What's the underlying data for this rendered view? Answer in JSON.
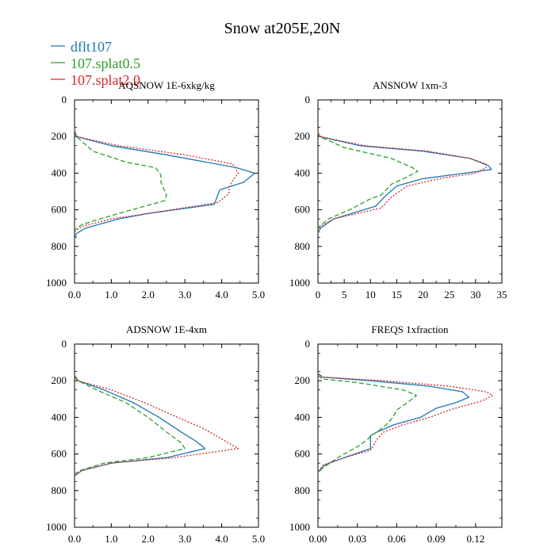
{
  "figure_title": "Snow at205E,20N",
  "legend": [
    {
      "label": "dflt107",
      "color": "#1f77b4",
      "dash": "solid"
    },
    {
      "label": "107.splat0.5",
      "color": "#2ca02c",
      "dash": "dash"
    },
    {
      "label": "107.splat2.0",
      "color": "#d62728",
      "dash": "dot"
    }
  ],
  "chart_data": [
    {
      "type": "line",
      "title": "AQSNOW  1E-6xkg/kg",
      "xlim": [
        0,
        5
      ],
      "ylim": [
        1000,
        0
      ],
      "xticks": [
        0,
        1,
        2,
        3,
        4,
        5
      ],
      "xticklabels": [
        "0.0",
        "1.0",
        "2.0",
        "3.0",
        "4.0",
        "5.0"
      ],
      "yticks": [
        0,
        200,
        400,
        600,
        800,
        1000
      ],
      "yticklabels": [
        "0",
        "200",
        "400",
        "600",
        "800",
        "1000"
      ],
      "series": [
        {
          "name": "dflt107",
          "points": [
            [
              0,
              160
            ],
            [
              0.05,
              200
            ],
            [
              1.0,
              250
            ],
            [
              2.5,
              300
            ],
            [
              4.4,
              370
            ],
            [
              4.9,
              400
            ],
            [
              4.6,
              450
            ],
            [
              3.95,
              490
            ],
            [
              3.8,
              570
            ],
            [
              2.0,
              620
            ],
            [
              1.2,
              650
            ],
            [
              0.3,
              700
            ],
            [
              0.05,
              730
            ],
            [
              0,
              760
            ]
          ]
        },
        {
          "name": "107.splat0.5",
          "points": [
            [
              0,
              170
            ],
            [
              0.05,
              200
            ],
            [
              0.5,
              280
            ],
            [
              1.4,
              340
            ],
            [
              2.2,
              370
            ],
            [
              2.35,
              410
            ],
            [
              2.35,
              450
            ],
            [
              2.5,
              520
            ],
            [
              2.45,
              550
            ],
            [
              1.2,
              620
            ],
            [
              0.2,
              680
            ],
            [
              0,
              710
            ]
          ]
        },
        {
          "name": "107.splat2.0",
          "points": [
            [
              0,
              170
            ],
            [
              0.05,
              200
            ],
            [
              1.2,
              250
            ],
            [
              3.0,
              300
            ],
            [
              4.3,
              350
            ],
            [
              4.45,
              400
            ],
            [
              4.3,
              440
            ],
            [
              4.2,
              480
            ],
            [
              4.2,
              510
            ],
            [
              3.9,
              560
            ],
            [
              2.0,
              620
            ],
            [
              1.0,
              650
            ],
            [
              0.2,
              690
            ],
            [
              0,
              720
            ]
          ]
        }
      ]
    },
    {
      "type": "line",
      "title": "ANSNOW  1xm-3",
      "xlim": [
        0,
        35
      ],
      "ylim": [
        1000,
        0
      ],
      "xticks": [
        0,
        5,
        10,
        15,
        20,
        25,
        30,
        35
      ],
      "xticklabels": [
        "0",
        "5",
        "10",
        "15",
        "20",
        "25",
        "30",
        "35"
      ],
      "yticks": [
        0,
        200,
        400,
        600,
        800,
        1000
      ],
      "yticklabels": [
        "0",
        "200",
        "400",
        "600",
        "800",
        "1000"
      ],
      "series": [
        {
          "name": "dflt107",
          "points": [
            [
              0,
              170
            ],
            [
              0.3,
              200
            ],
            [
              8,
              250
            ],
            [
              20,
              280
            ],
            [
              29,
              320
            ],
            [
              32.5,
              360
            ],
            [
              33,
              380
            ],
            [
              28,
              400
            ],
            [
              20,
              430
            ],
            [
              15,
              470
            ],
            [
              13,
              520
            ],
            [
              11,
              580
            ],
            [
              3,
              650
            ],
            [
              0.5,
              700
            ],
            [
              0,
              730
            ]
          ]
        },
        {
          "name": "107.splat0.5",
          "points": [
            [
              0,
              180
            ],
            [
              0.3,
              200
            ],
            [
              5,
              260
            ],
            [
              14,
              320
            ],
            [
              18,
              370
            ],
            [
              19,
              390
            ],
            [
              17,
              420
            ],
            [
              14,
              460
            ],
            [
              12,
              520
            ],
            [
              10,
              540
            ],
            [
              6,
              600
            ],
            [
              2,
              650
            ],
            [
              0.3,
              690
            ],
            [
              0,
              710
            ]
          ]
        },
        {
          "name": "107.splat2.0",
          "points": [
            [
              0,
              170
            ],
            [
              0.3,
              200
            ],
            [
              9,
              250
            ],
            [
              21,
              280
            ],
            [
              29,
              320
            ],
            [
              32,
              350
            ],
            [
              32,
              370
            ],
            [
              30,
              400
            ],
            [
              23,
              430
            ],
            [
              17,
              470
            ],
            [
              14,
              530
            ],
            [
              12,
              590
            ],
            [
              3,
              650
            ],
            [
              0.5,
              690
            ],
            [
              0,
              710
            ]
          ]
        }
      ]
    },
    {
      "type": "line",
      "title": "ADSNOW  1E-4xm",
      "xlim": [
        0,
        5
      ],
      "ylim": [
        1000,
        0
      ],
      "xticks": [
        0,
        1,
        2,
        3,
        4,
        5
      ],
      "xticklabels": [
        "0.0",
        "1.0",
        "2.0",
        "3.0",
        "4.0",
        "5.0"
      ],
      "yticks": [
        0,
        200,
        400,
        600,
        800,
        1000
      ],
      "yticklabels": [
        "0",
        "200",
        "400",
        "600",
        "800",
        "1000"
      ],
      "series": [
        {
          "name": "dflt107",
          "points": [
            [
              0,
              170
            ],
            [
              0.1,
              200
            ],
            [
              0.8,
              250
            ],
            [
              1.6,
              320
            ],
            [
              2.3,
              400
            ],
            [
              2.9,
              480
            ],
            [
              3.3,
              530
            ],
            [
              3.55,
              570
            ],
            [
              2.5,
              620
            ],
            [
              1.0,
              650
            ],
            [
              0.2,
              690
            ],
            [
              0,
              720
            ]
          ]
        },
        {
          "name": "107.splat0.5",
          "points": [
            [
              0,
              180
            ],
            [
              0.1,
              200
            ],
            [
              0.6,
              250
            ],
            [
              1.4,
              320
            ],
            [
              2.0,
              400
            ],
            [
              2.5,
              480
            ],
            [
              2.9,
              540
            ],
            [
              3.0,
              570
            ],
            [
              2.0,
              620
            ],
            [
              0.8,
              650
            ],
            [
              0.15,
              690
            ],
            [
              0,
              710
            ]
          ]
        },
        {
          "name": "107.splat2.0",
          "points": [
            [
              0,
              170
            ],
            [
              0.1,
              200
            ],
            [
              1.0,
              250
            ],
            [
              1.9,
              320
            ],
            [
              2.8,
              400
            ],
            [
              3.5,
              460
            ],
            [
              4.1,
              530
            ],
            [
              4.45,
              570
            ],
            [
              2.7,
              620
            ],
            [
              1.0,
              650
            ],
            [
              0.2,
              690
            ],
            [
              0,
              720
            ]
          ]
        }
      ]
    },
    {
      "type": "line",
      "title": "FREQS  1xfraction",
      "xlim": [
        0,
        0.14
      ],
      "ylim": [
        1000,
        0
      ],
      "xticks": [
        0,
        0.03,
        0.06,
        0.09,
        0.12
      ],
      "xticklabels": [
        "0.00",
        "0.03",
        "0.06",
        "0.09",
        "0.12"
      ],
      "yticks": [
        0,
        200,
        400,
        600,
        800,
        1000
      ],
      "yticklabels": [
        "0",
        "200",
        "400",
        "600",
        "800",
        "1000"
      ],
      "series": [
        {
          "name": "dflt107",
          "points": [
            [
              0,
              160
            ],
            [
              0.003,
              180
            ],
            [
              0.04,
              200
            ],
            [
              0.085,
              230
            ],
            [
              0.11,
              260
            ],
            [
              0.115,
              290
            ],
            [
              0.105,
              320
            ],
            [
              0.09,
              350
            ],
            [
              0.078,
              400
            ],
            [
              0.058,
              440
            ],
            [
              0.045,
              480
            ],
            [
              0.04,
              500
            ],
            [
              0.04,
              570
            ],
            [
              0.02,
              620
            ],
            [
              0.005,
              660
            ],
            [
              0,
              700
            ]
          ]
        },
        {
          "name": "107.splat0.5",
          "points": [
            [
              0,
              170
            ],
            [
              0.003,
              190
            ],
            [
              0.03,
              210
            ],
            [
              0.065,
              250
            ],
            [
              0.075,
              280
            ],
            [
              0.068,
              320
            ],
            [
              0.06,
              360
            ],
            [
              0.057,
              400
            ],
            [
              0.052,
              440
            ],
            [
              0.045,
              480
            ],
            [
              0.04,
              500
            ],
            [
              0.038,
              520
            ],
            [
              0.03,
              560
            ],
            [
              0.015,
              620
            ],
            [
              0.003,
              680
            ],
            [
              0,
              710
            ]
          ]
        },
        {
          "name": "107.splat2.0",
          "points": [
            [
              0,
              160
            ],
            [
              0.004,
              180
            ],
            [
              0.05,
              200
            ],
            [
              0.1,
              230
            ],
            [
              0.128,
              260
            ],
            [
              0.133,
              280
            ],
            [
              0.125,
              310
            ],
            [
              0.1,
              360
            ],
            [
              0.085,
              400
            ],
            [
              0.065,
              440
            ],
            [
              0.05,
              480
            ],
            [
              0.045,
              520
            ],
            [
              0.04,
              580
            ],
            [
              0.02,
              620
            ],
            [
              0.004,
              660
            ],
            [
              0,
              700
            ]
          ]
        }
      ]
    }
  ]
}
